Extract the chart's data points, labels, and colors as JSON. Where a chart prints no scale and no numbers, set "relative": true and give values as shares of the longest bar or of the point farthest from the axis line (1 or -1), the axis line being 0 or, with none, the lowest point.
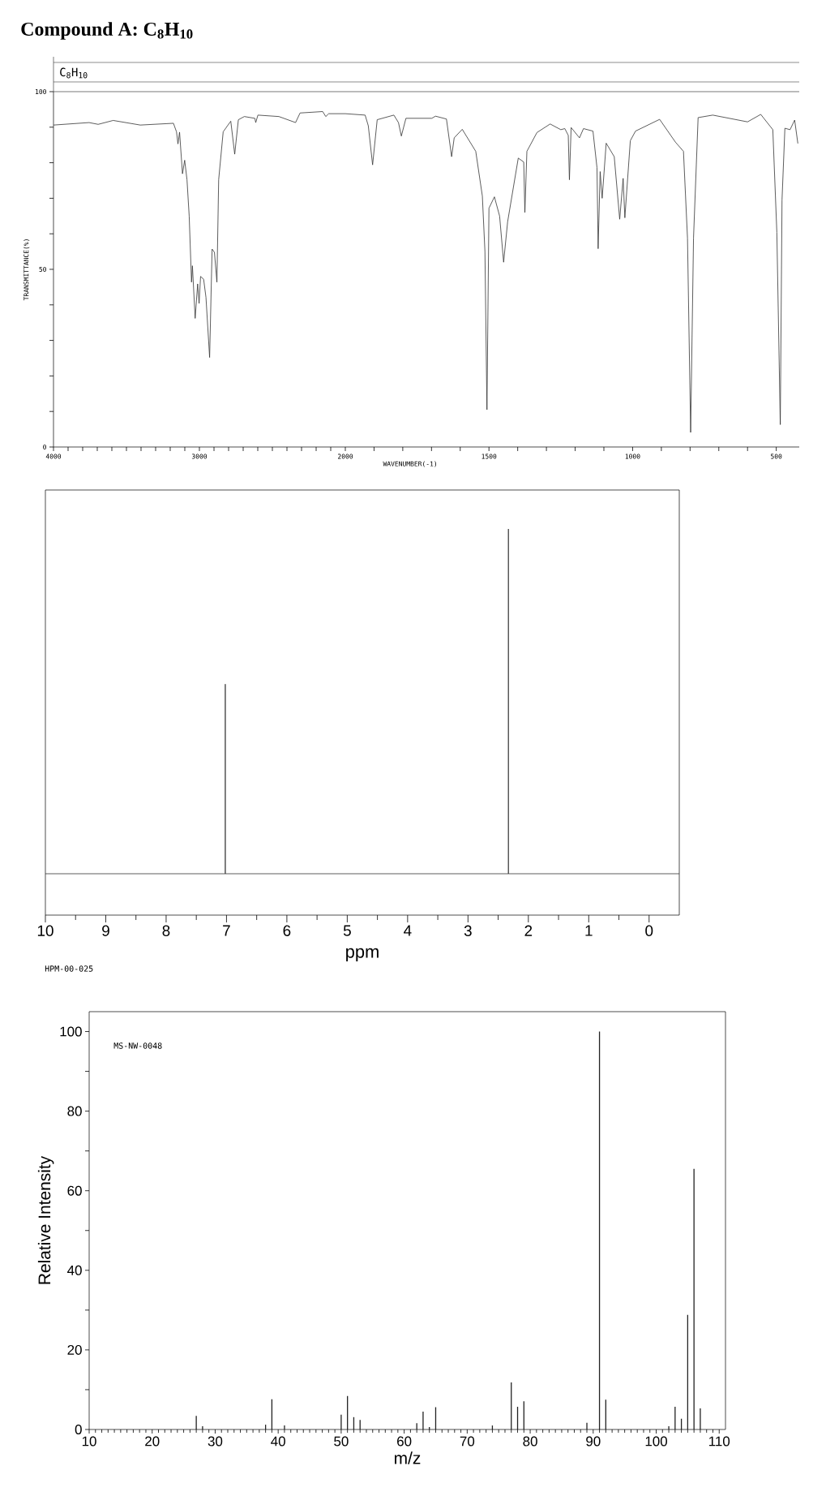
{
  "chart_data": [
    {
      "type": "line",
      "title": "Compound A: C$_{8}$H$_{10}$",
      "ylabel": "TRANSMITTANCE(%)",
      "annotations": [
        "C$_{8}$H$_{10}$"
      ],
      "color": "#333333",
      "x": [
        4000,
        3756,
        3694,
        3591,
        3405,
        3178,
        3157,
        3147,
        3136,
        3116,
        3101,
        3085,
        3070,
        3054,
        3048,
        3029,
        3012,
        3002,
        2992,
        2971,
        2955,
        2930,
        2913,
        2897,
        2880,
        2868,
        2837,
        2785,
        2758,
        2733,
        2692,
        2620,
        2614,
        2599,
        2455,
        2341,
        2310,
        2155,
        2134,
        2114,
        2000
      ],
      "values": [
        90.6,
        91.3,
        90.8,
        91.9,
        90.6,
        91.1,
        88.7,
        85.3,
        88.6,
        76.9,
        80.7,
        75.2,
        65,
        46.4,
        51,
        36.2,
        45.9,
        40.4,
        48,
        47.2,
        42.1,
        25.2,
        55.7,
        54.8,
        46.4,
        75.2,
        88.7,
        91.7,
        82.4,
        92.1,
        93,
        92.5,
        91.3,
        93.4,
        93,
        91.3,
        94,
        94.4,
        93,
        93.8,
        93.8
      ],
      "xlim": [
        4000,
        2000
      ],
      "ylim": [
        0,
        100
      ],
      "xticks": [
        4000,
        {
          "value": 3900,
          "label": null
        },
        {
          "value": 3800,
          "label": null
        },
        {
          "value": 3700,
          "label": null
        },
        {
          "value": 3600,
          "label": null
        },
        {
          "value": 3500,
          "label": null
        },
        {
          "value": 3400,
          "label": null
        },
        {
          "value": 3300,
          "label": null
        },
        {
          "value": 3200,
          "label": null
        },
        {
          "value": 3100,
          "label": null
        },
        3000,
        {
          "value": 2900,
          "label": null
        },
        {
          "value": 2800,
          "label": null
        },
        {
          "value": 2700,
          "label": null
        },
        {
          "value": 2600,
          "label": null
        },
        {
          "value": 2500,
          "label": null
        },
        {
          "value": 2400,
          "label": null
        },
        {
          "value": 2300,
          "label": null
        },
        {
          "value": 2200,
          "label": null
        },
        {
          "value": 2100,
          "label": null
        },
        2000
      ],
      "yticks": [
        0,
        {
          "value": 10,
          "label": null
        },
        {
          "value": 20,
          "label": null
        },
        {
          "value": 30,
          "label": null
        },
        {
          "value": 40,
          "label": null
        },
        50,
        {
          "value": 60,
          "label": null
        },
        {
          "value": 70,
          "label": null
        },
        {
          "value": 80,
          "label": null
        },
        {
          "value": 90,
          "label": null
        },
        100
      ]
    },
    {
      "type": "line",
      "xlabel": "WAVENUMBER(-1)",
      "color": "#333333",
      "tick_labels": "x",
      "x": [
        2000,
        1931,
        1920,
        1905,
        1889,
        1831,
        1815,
        1805,
        1789,
        1731,
        1699,
        1686,
        1648,
        1630,
        1621,
        1593,
        1546,
        1523,
        1514,
        1507,
        1500,
        1481,
        1463,
        1449,
        1435,
        1398,
        1379,
        1375,
        1368,
        1333,
        1287,
        1250,
        1236,
        1224,
        1220,
        1214,
        1185,
        1171,
        1138,
        1124,
        1120,
        1113,
        1106,
        1092,
        1064,
        1045,
        1033,
        1027,
        1008,
        990,
        906,
        851,
        823,
        809,
        798,
        788,
        772,
        721,
        600,
        554,
        512,
        498,
        486,
        480,
        470,
        452,
        436,
        425
      ],
      "values": [
        93.8,
        93.4,
        90.4,
        79.4,
        92.1,
        93.4,
        91.3,
        87.5,
        92.5,
        92.5,
        92.5,
        93.1,
        92.3,
        81.7,
        87,
        89.4,
        83.2,
        70.6,
        55,
        10.5,
        67.2,
        70.4,
        65,
        52,
        63.4,
        81.3,
        80.2,
        66,
        83.2,
        88.5,
        90.9,
        89.3,
        89.6,
        87.7,
        75.2,
        89.9,
        87,
        89.6,
        88.9,
        78.6,
        55.8,
        77.5,
        70,
        85.5,
        81.7,
        64.1,
        75.6,
        64.5,
        86.2,
        88.9,
        92.2,
        85.8,
        83.2,
        58.8,
        4.1,
        58.8,
        92.7,
        93.4,
        91.5,
        93.6,
        89.3,
        60.4,
        6.3,
        69.5,
        89.7,
        89.3,
        92,
        85.5
      ],
      "xlim": [
        2000,
        420
      ],
      "ylim": [
        0,
        100
      ],
      "xticks": [
        {
          "value": 1900,
          "label": null
        },
        {
          "value": 1800,
          "label": null
        },
        {
          "value": 1700,
          "label": null
        },
        {
          "value": 1600,
          "label": null
        },
        1500,
        {
          "value": 1400,
          "label": null
        },
        {
          "value": 1300,
          "label": null
        },
        {
          "value": 1200,
          "label": null
        },
        {
          "value": 1100,
          "label": null
        },
        1000,
        {
          "value": 900,
          "label": null
        },
        {
          "value": 800,
          "label": null
        },
        {
          "value": 700,
          "label": null
        },
        {
          "value": 600,
          "label": null
        },
        500
      ]
    },
    {
      "type": "line",
      "xlabel": "ppm",
      "annotations": [
        "HPM-00-025"
      ],
      "color": "#333333",
      "relative": true,
      "x": [
        10,
        7.02,
        7.02,
        7.02,
        2.33,
        2.33,
        2.33,
        -0.5
      ],
      "values": [
        0,
        0,
        0.55,
        0,
        0,
        1,
        0,
        0
      ],
      "xlim": [
        10,
        -0.5
      ],
      "xticks": [
        10,
        9,
        8,
        7,
        6,
        5,
        4,
        3,
        2,
        1,
        0
      ]
    },
    {
      "type": "bar",
      "xlabel": "m/z",
      "ylabel": "Relative Intensity",
      "annotations": [
        "MS-NW-0048"
      ],
      "color": "#222222",
      "x": [
        27,
        28,
        38,
        39,
        41,
        50,
        51,
        52,
        53,
        62,
        63,
        64,
        65,
        74,
        77,
        78,
        79,
        89,
        91,
        92,
        102,
        103,
        104,
        105,
        106,
        107
      ],
      "values": [
        3.4,
        0.8,
        1.2,
        7.6,
        1.0,
        3.7,
        8.4,
        3.1,
        2.4,
        1.6,
        4.5,
        0.6,
        5.6,
        1.0,
        11.8,
        5.7,
        7.1,
        1.7,
        100,
        7.5,
        0.8,
        5.7,
        2.7,
        28.8,
        65.5,
        5.3
      ],
      "xlim": [
        10,
        111
      ],
      "ylim": [
        0,
        105
      ],
      "xticks": [
        10,
        20,
        30,
        40,
        50,
        60,
        70,
        80,
        90,
        100,
        110
      ],
      "yticks": [
        0,
        {
          "value": 10,
          "label": null
        },
        20,
        {
          "value": 30,
          "label": null
        },
        40,
        {
          "value": 50,
          "label": null
        },
        60,
        {
          "value": 70,
          "label": null
        },
        80,
        {
          "value": 90,
          "label": null
        },
        100
      ]
    }
  ]
}
